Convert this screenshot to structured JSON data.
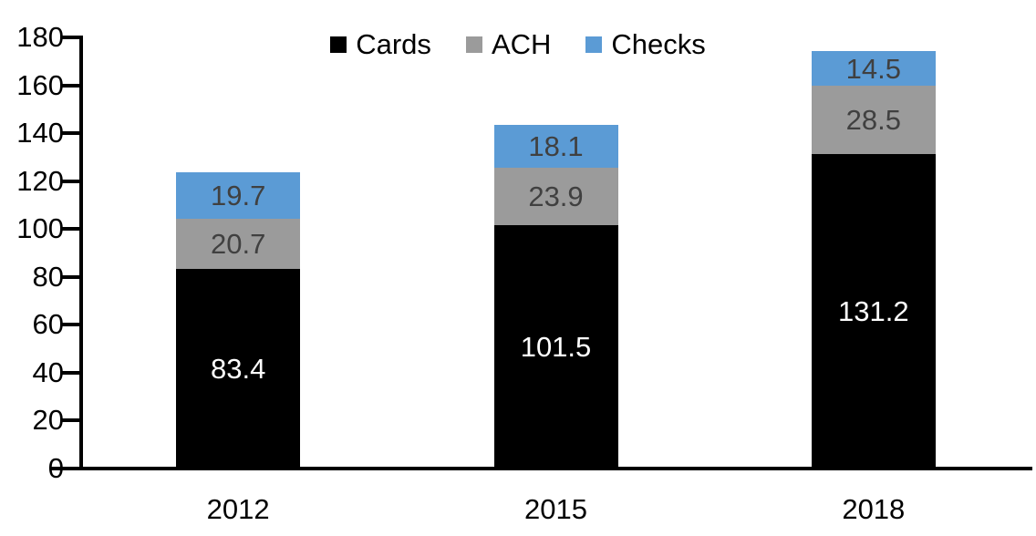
{
  "page": {
    "background_color": "#FFFFFF",
    "text_color": "#000000"
  },
  "chart_data": {
    "type": "bar",
    "stacked": true,
    "title": "",
    "xlabel": "",
    "ylabel": "",
    "categories": [
      "2012",
      "2015",
      "2018"
    ],
    "series": [
      {
        "name": "Cards",
        "color": "#000000",
        "label_color": "#FFFFFF",
        "values": [
          83.4,
          101.5,
          131.2
        ]
      },
      {
        "name": "ACH",
        "color": "#9B9B9B",
        "label_color": "#404040",
        "values": [
          20.7,
          23.9,
          28.5
        ]
      },
      {
        "name": "Checks",
        "color": "#5B9BD5",
        "label_color": "#404040",
        "values": [
          19.7,
          18.1,
          14.5
        ]
      }
    ],
    "stack_totals": [
      123.8,
      143.5,
      174.2
    ],
    "ylim": [
      0,
      180
    ],
    "yticks": [
      0,
      20,
      40,
      60,
      80,
      100,
      120,
      140,
      160,
      180
    ],
    "grid": false,
    "legend_position": "top-center",
    "value_label_decimals": 1,
    "axis_color": "#000000"
  }
}
